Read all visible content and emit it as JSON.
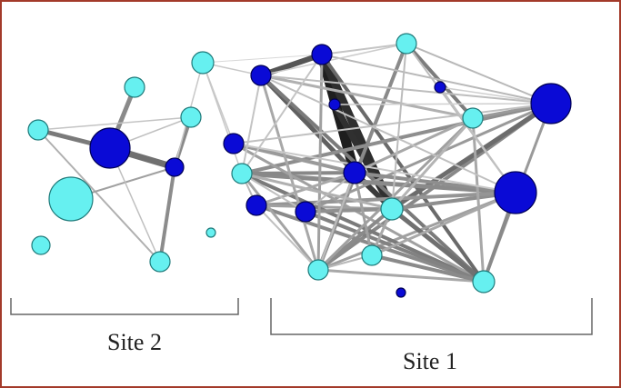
{
  "labels": {
    "site2": "Site 2",
    "site1": "Site 1"
  },
  "colors": {
    "frame": "#a33a2a",
    "node_dark_fill": "#0a0ad6",
    "node_dark_stroke": "#000055",
    "node_light_fill": "#66f0f0",
    "node_light_stroke": "#1f7a7a",
    "bracket": "#666666"
  },
  "network": {
    "nodes": [
      {
        "id": "s2a",
        "kind": "light"
      },
      {
        "id": "s2b",
        "kind": "light"
      },
      {
        "id": "s2c",
        "kind": "light"
      },
      {
        "id": "s2d",
        "kind": "dark"
      },
      {
        "id": "s2e",
        "kind": "dark"
      },
      {
        "id": "s2f",
        "kind": "light"
      },
      {
        "id": "s2g",
        "kind": "light"
      },
      {
        "id": "s2h",
        "kind": "light"
      },
      {
        "id": "s2i",
        "kind": "light"
      },
      {
        "id": "iso",
        "kind": "light"
      },
      {
        "id": "n1",
        "kind": "dark"
      },
      {
        "id": "n2",
        "kind": "dark"
      },
      {
        "id": "n3",
        "kind": "light"
      },
      {
        "id": "n4",
        "kind": "dark"
      },
      {
        "id": "n5",
        "kind": "dark"
      },
      {
        "id": "n6",
        "kind": "dark"
      },
      {
        "id": "n7",
        "kind": "light"
      },
      {
        "id": "n8",
        "kind": "dark"
      },
      {
        "id": "n9",
        "kind": "light"
      },
      {
        "id": "n10",
        "kind": "dark"
      },
      {
        "id": "n11",
        "kind": "dark"
      },
      {
        "id": "n12",
        "kind": "dark"
      },
      {
        "id": "n13",
        "kind": "dark"
      },
      {
        "id": "n14",
        "kind": "light"
      },
      {
        "id": "n15",
        "kind": "light"
      },
      {
        "id": "n16",
        "kind": "light"
      },
      {
        "id": "n17",
        "kind": "light"
      },
      {
        "id": "n18",
        "kind": "dark"
      }
    ]
  }
}
